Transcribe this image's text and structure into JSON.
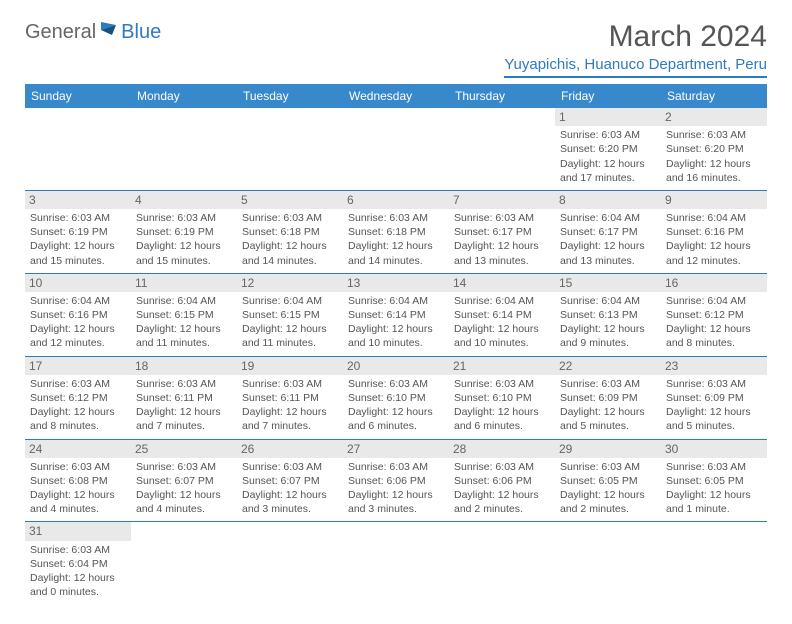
{
  "logo": {
    "general": "General",
    "blue": "Blue"
  },
  "title": "March 2024",
  "location": "Yuyapichis, Huanuco Department, Peru",
  "colors": {
    "header_bg": "#3789cb",
    "accent": "#2d7bc0",
    "text": "#555555",
    "daynum_bg": "#e9e9e9"
  },
  "day_headers": [
    "Sunday",
    "Monday",
    "Tuesday",
    "Wednesday",
    "Thursday",
    "Friday",
    "Saturday"
  ],
  "weeks": [
    [
      null,
      null,
      null,
      null,
      null,
      {
        "n": "1",
        "sunrise": "Sunrise: 6:03 AM",
        "sunset": "Sunset: 6:20 PM",
        "day1": "Daylight: 12 hours",
        "day2": "and 17 minutes."
      },
      {
        "n": "2",
        "sunrise": "Sunrise: 6:03 AM",
        "sunset": "Sunset: 6:20 PM",
        "day1": "Daylight: 12 hours",
        "day2": "and 16 minutes."
      }
    ],
    [
      {
        "n": "3",
        "sunrise": "Sunrise: 6:03 AM",
        "sunset": "Sunset: 6:19 PM",
        "day1": "Daylight: 12 hours",
        "day2": "and 15 minutes."
      },
      {
        "n": "4",
        "sunrise": "Sunrise: 6:03 AM",
        "sunset": "Sunset: 6:19 PM",
        "day1": "Daylight: 12 hours",
        "day2": "and 15 minutes."
      },
      {
        "n": "5",
        "sunrise": "Sunrise: 6:03 AM",
        "sunset": "Sunset: 6:18 PM",
        "day1": "Daylight: 12 hours",
        "day2": "and 14 minutes."
      },
      {
        "n": "6",
        "sunrise": "Sunrise: 6:03 AM",
        "sunset": "Sunset: 6:18 PM",
        "day1": "Daylight: 12 hours",
        "day2": "and 14 minutes."
      },
      {
        "n": "7",
        "sunrise": "Sunrise: 6:03 AM",
        "sunset": "Sunset: 6:17 PM",
        "day1": "Daylight: 12 hours",
        "day2": "and 13 minutes."
      },
      {
        "n": "8",
        "sunrise": "Sunrise: 6:04 AM",
        "sunset": "Sunset: 6:17 PM",
        "day1": "Daylight: 12 hours",
        "day2": "and 13 minutes."
      },
      {
        "n": "9",
        "sunrise": "Sunrise: 6:04 AM",
        "sunset": "Sunset: 6:16 PM",
        "day1": "Daylight: 12 hours",
        "day2": "and 12 minutes."
      }
    ],
    [
      {
        "n": "10",
        "sunrise": "Sunrise: 6:04 AM",
        "sunset": "Sunset: 6:16 PM",
        "day1": "Daylight: 12 hours",
        "day2": "and 12 minutes."
      },
      {
        "n": "11",
        "sunrise": "Sunrise: 6:04 AM",
        "sunset": "Sunset: 6:15 PM",
        "day1": "Daylight: 12 hours",
        "day2": "and 11 minutes."
      },
      {
        "n": "12",
        "sunrise": "Sunrise: 6:04 AM",
        "sunset": "Sunset: 6:15 PM",
        "day1": "Daylight: 12 hours",
        "day2": "and 11 minutes."
      },
      {
        "n": "13",
        "sunrise": "Sunrise: 6:04 AM",
        "sunset": "Sunset: 6:14 PM",
        "day1": "Daylight: 12 hours",
        "day2": "and 10 minutes."
      },
      {
        "n": "14",
        "sunrise": "Sunrise: 6:04 AM",
        "sunset": "Sunset: 6:14 PM",
        "day1": "Daylight: 12 hours",
        "day2": "and 10 minutes."
      },
      {
        "n": "15",
        "sunrise": "Sunrise: 6:04 AM",
        "sunset": "Sunset: 6:13 PM",
        "day1": "Daylight: 12 hours",
        "day2": "and 9 minutes."
      },
      {
        "n": "16",
        "sunrise": "Sunrise: 6:04 AM",
        "sunset": "Sunset: 6:12 PM",
        "day1": "Daylight: 12 hours",
        "day2": "and 8 minutes."
      }
    ],
    [
      {
        "n": "17",
        "sunrise": "Sunrise: 6:03 AM",
        "sunset": "Sunset: 6:12 PM",
        "day1": "Daylight: 12 hours",
        "day2": "and 8 minutes."
      },
      {
        "n": "18",
        "sunrise": "Sunrise: 6:03 AM",
        "sunset": "Sunset: 6:11 PM",
        "day1": "Daylight: 12 hours",
        "day2": "and 7 minutes."
      },
      {
        "n": "19",
        "sunrise": "Sunrise: 6:03 AM",
        "sunset": "Sunset: 6:11 PM",
        "day1": "Daylight: 12 hours",
        "day2": "and 7 minutes."
      },
      {
        "n": "20",
        "sunrise": "Sunrise: 6:03 AM",
        "sunset": "Sunset: 6:10 PM",
        "day1": "Daylight: 12 hours",
        "day2": "and 6 minutes."
      },
      {
        "n": "21",
        "sunrise": "Sunrise: 6:03 AM",
        "sunset": "Sunset: 6:10 PM",
        "day1": "Daylight: 12 hours",
        "day2": "and 6 minutes."
      },
      {
        "n": "22",
        "sunrise": "Sunrise: 6:03 AM",
        "sunset": "Sunset: 6:09 PM",
        "day1": "Daylight: 12 hours",
        "day2": "and 5 minutes."
      },
      {
        "n": "23",
        "sunrise": "Sunrise: 6:03 AM",
        "sunset": "Sunset: 6:09 PM",
        "day1": "Daylight: 12 hours",
        "day2": "and 5 minutes."
      }
    ],
    [
      {
        "n": "24",
        "sunrise": "Sunrise: 6:03 AM",
        "sunset": "Sunset: 6:08 PM",
        "day1": "Daylight: 12 hours",
        "day2": "and 4 minutes."
      },
      {
        "n": "25",
        "sunrise": "Sunrise: 6:03 AM",
        "sunset": "Sunset: 6:07 PM",
        "day1": "Daylight: 12 hours",
        "day2": "and 4 minutes."
      },
      {
        "n": "26",
        "sunrise": "Sunrise: 6:03 AM",
        "sunset": "Sunset: 6:07 PM",
        "day1": "Daylight: 12 hours",
        "day2": "and 3 minutes."
      },
      {
        "n": "27",
        "sunrise": "Sunrise: 6:03 AM",
        "sunset": "Sunset: 6:06 PM",
        "day1": "Daylight: 12 hours",
        "day2": "and 3 minutes."
      },
      {
        "n": "28",
        "sunrise": "Sunrise: 6:03 AM",
        "sunset": "Sunset: 6:06 PM",
        "day1": "Daylight: 12 hours",
        "day2": "and 2 minutes."
      },
      {
        "n": "29",
        "sunrise": "Sunrise: 6:03 AM",
        "sunset": "Sunset: 6:05 PM",
        "day1": "Daylight: 12 hours",
        "day2": "and 2 minutes."
      },
      {
        "n": "30",
        "sunrise": "Sunrise: 6:03 AM",
        "sunset": "Sunset: 6:05 PM",
        "day1": "Daylight: 12 hours",
        "day2": "and 1 minute."
      }
    ],
    [
      {
        "n": "31",
        "sunrise": "Sunrise: 6:03 AM",
        "sunset": "Sunset: 6:04 PM",
        "day1": "Daylight: 12 hours",
        "day2": "and 0 minutes."
      },
      null,
      null,
      null,
      null,
      null,
      null
    ]
  ]
}
